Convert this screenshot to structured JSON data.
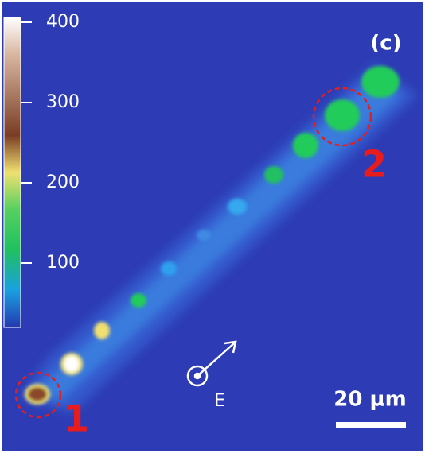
{
  "panel_label": "(c)",
  "colorbar": {
    "ticks": [
      400,
      300,
      200,
      100
    ]
  },
  "markers": [
    "1",
    "2"
  ],
  "field_label": "E",
  "scale_bar": "20 µm"
}
